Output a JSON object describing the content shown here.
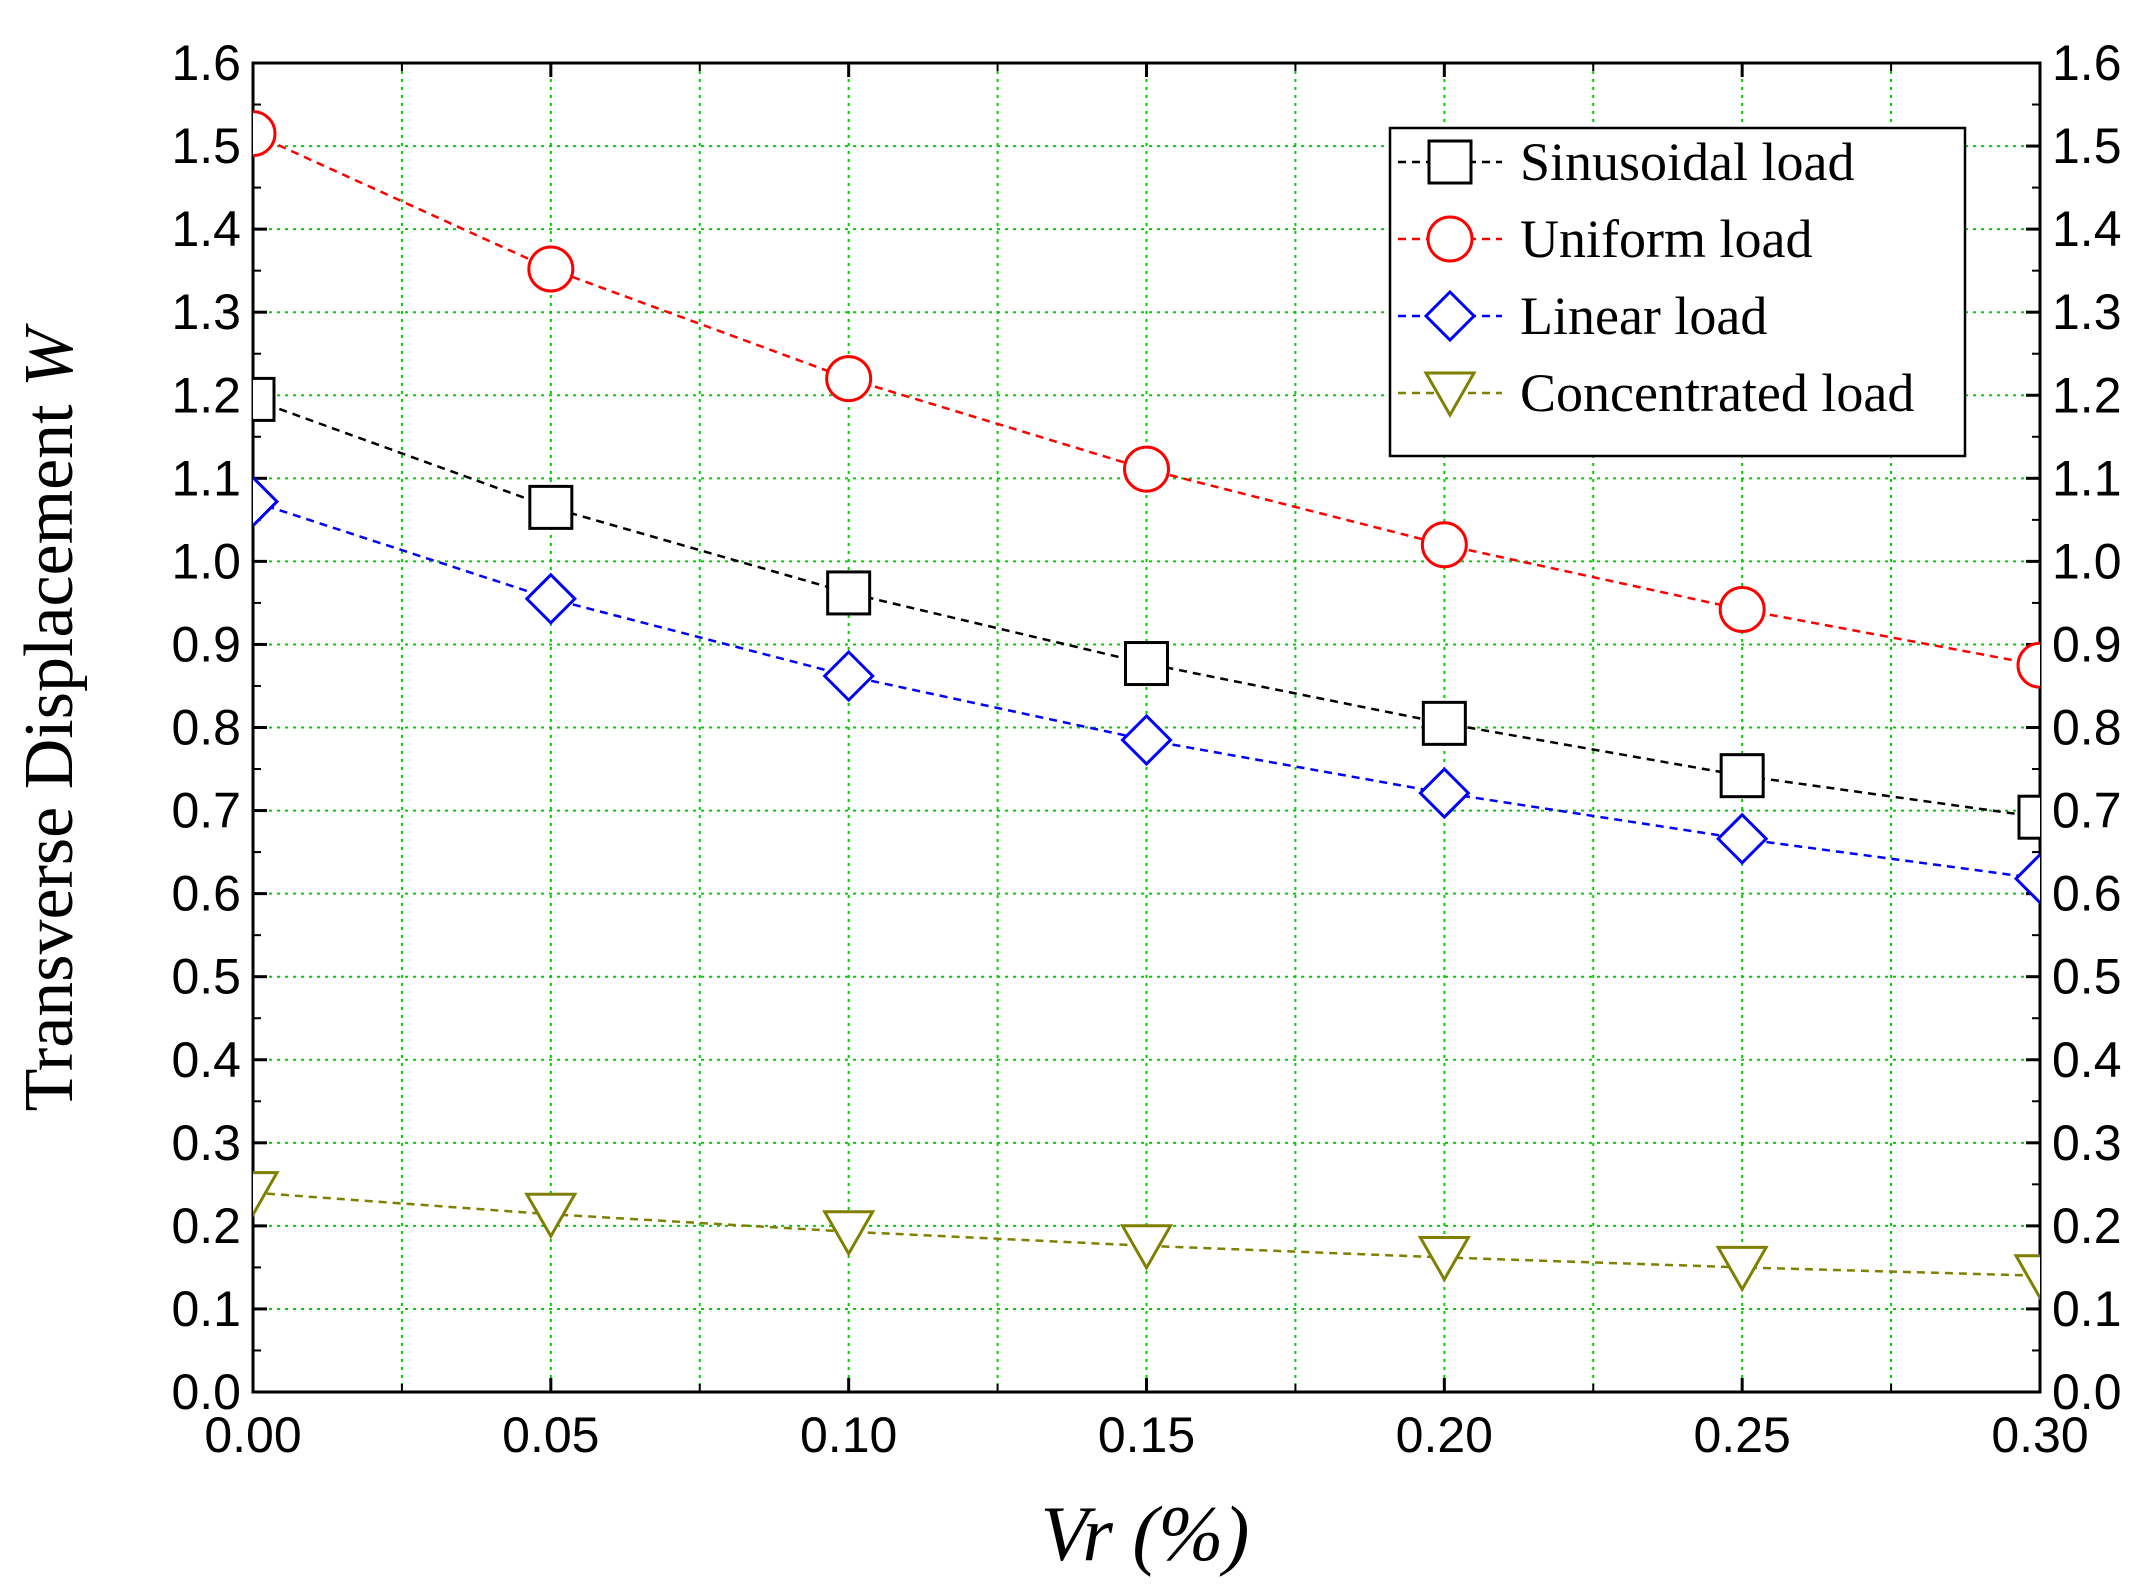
{
  "chart_data": {
    "type": "line",
    "title": "",
    "xlabel_main": "Vr",
    "xlabel_unit": " (%)",
    "ylabel_main": "Transverse Displacement ",
    "ylabel_var": "W",
    "xlim": [
      0.0,
      0.3
    ],
    "ylim": [
      0.0,
      1.6
    ],
    "x_ticks": [
      0.0,
      0.05,
      0.1,
      0.15,
      0.2,
      0.25,
      0.3
    ],
    "x_tick_labels": [
      "0.00",
      "0.05",
      "0.10",
      "0.15",
      "0.20",
      "0.25",
      "0.30"
    ],
    "y_ticks": [
      0.0,
      0.1,
      0.2,
      0.3,
      0.4,
      0.5,
      0.6,
      0.7,
      0.8,
      0.9,
      1.0,
      1.1,
      1.2,
      1.3,
      1.4,
      1.5,
      1.6
    ],
    "y_tick_labels": [
      "0.0",
      "0.1",
      "0.2",
      "0.3",
      "0.4",
      "0.5",
      "0.6",
      "0.7",
      "0.8",
      "0.9",
      "1.0",
      "1.1",
      "1.2",
      "1.3",
      "1.4",
      "1.5",
      "1.6"
    ],
    "x_minor_step": 0.025,
    "grid": true,
    "legend_position": "top-right",
    "x": [
      0.0,
      0.05,
      0.1,
      0.15,
      0.2,
      0.25,
      0.3
    ],
    "series": [
      {
        "name": "Sinusoidal load",
        "marker": "square",
        "color": "#000000",
        "values": [
          1.195,
          1.065,
          0.962,
          0.877,
          0.805,
          0.742,
          0.692
        ]
      },
      {
        "name": "Uniform load",
        "marker": "circle",
        "color": "#ff0000",
        "values": [
          1.515,
          1.352,
          1.22,
          1.111,
          1.02,
          0.942,
          0.875
        ]
      },
      {
        "name": "Linear load",
        "marker": "diamond",
        "color": "#0000ff",
        "values": [
          1.072,
          0.955,
          0.862,
          0.785,
          0.721,
          0.666,
          0.618
        ]
      },
      {
        "name": "Concentrated load",
        "marker": "triangle-down",
        "color": "#808000",
        "values": [
          0.24,
          0.214,
          0.193,
          0.176,
          0.162,
          0.15,
          0.14
        ]
      }
    ]
  }
}
